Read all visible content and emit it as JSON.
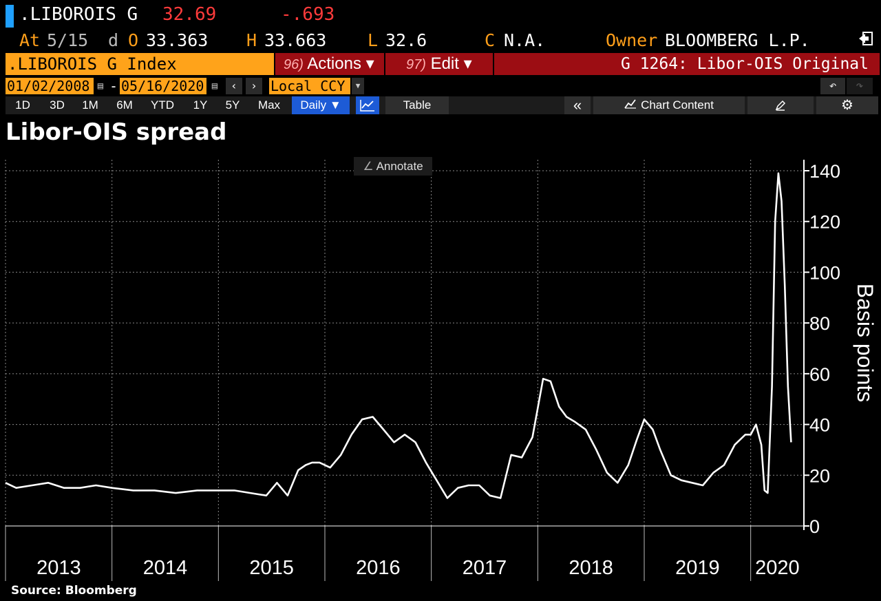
{
  "ticker": {
    "symbol": ".LIBOROIS G",
    "last": "32.69",
    "change": "-.693"
  },
  "quote": {
    "at_label": "At",
    "at_value": "5/15",
    "d_label": "d",
    "open_label": "O",
    "open_value": "33.363",
    "high_label": "H",
    "high_value": "33.663",
    "low_label": "L",
    "low_value": "32.6",
    "close_label": "C",
    "close_value": "N.A.",
    "owner_label": "Owner",
    "owner_value": "BLOOMBERG L.P."
  },
  "command_bar": {
    "security": ".LIBOROIS G Index",
    "actions_num": "96)",
    "actions_label": "Actions ▾",
    "edit_num": "97)",
    "edit_label": "Edit ▾",
    "function_title": "G 1264: Libor-OIS Original"
  },
  "date_range": {
    "start": "01/02/2008",
    "dash": "-",
    "end": "05/16/2020",
    "currency": "Local CCY"
  },
  "period_buttons": [
    "1D",
    "3D",
    "1M",
    "6M",
    "YTD",
    "1Y",
    "5Y",
    "Max"
  ],
  "frequency": "Daily ▼",
  "toolbar": {
    "table_label": "Table",
    "collapse_glyph": "«",
    "chart_content_label": "Chart Content",
    "annotate_label": "Annotate"
  },
  "icons": {
    "exit": "exit-icon",
    "calendar": "calendar-icon",
    "undo": "undo-icon",
    "redo": "redo-icon",
    "line_chart": "line-chart-icon",
    "settings": "gear-icon",
    "pencil": "pencil-icon"
  },
  "colors": {
    "accent_orange": "#ffa31a",
    "command_red": "#9c0d13",
    "selected_blue": "#1d5bd6",
    "price_red": "#ff3b3b",
    "ticker_blue": "#1fa0ff"
  },
  "chart_title": "Libor-OIS spread",
  "source": "Source: Bloomberg",
  "chart_data": {
    "type": "line",
    "title": "Libor-OIS spread",
    "ylabel": "Basis points",
    "xlabel": "",
    "ylim": [
      0,
      140
    ],
    "xlim": [
      2013.0,
      2020.5
    ],
    "yticks": [
      0,
      20,
      40,
      60,
      80,
      100,
      120,
      140
    ],
    "xtick_labels": [
      "2013",
      "2014",
      "2015",
      "2016",
      "2017",
      "2018",
      "2019",
      "2020"
    ],
    "grid": true,
    "legend": "none",
    "series": [
      {
        "x": [
          2013.0,
          2013.1,
          2013.25,
          2013.4,
          2013.55,
          2013.7,
          2013.85,
          2014.0,
          2014.2,
          2014.4,
          2014.6,
          2014.8,
          2015.0,
          2015.15,
          2015.3,
          2015.45,
          2015.55,
          2015.65,
          2015.75,
          2015.82,
          2015.88,
          2015.95,
          2016.05,
          2016.15,
          2016.25,
          2016.35,
          2016.45,
          2016.55,
          2016.65,
          2016.75,
          2016.85,
          2016.95,
          2017.05,
          2017.15,
          2017.25,
          2017.35,
          2017.45,
          2017.55,
          2017.65,
          2017.75,
          2017.85,
          2017.95,
          2018.05,
          2018.12,
          2018.2,
          2018.27,
          2018.35,
          2018.45,
          2018.55,
          2018.65,
          2018.75,
          2018.85,
          2018.93,
          2019.0,
          2019.08,
          2019.15,
          2019.25,
          2019.35,
          2019.45,
          2019.55,
          2019.65,
          2019.75,
          2019.85,
          2019.95,
          2020.0,
          2020.05,
          2020.1,
          2020.13,
          2020.16,
          2020.2,
          2020.23,
          2020.26,
          2020.29,
          2020.32,
          2020.35,
          2020.38
        ],
        "y": [
          17,
          15,
          16,
          17,
          15,
          15,
          16,
          15,
          14,
          14,
          13,
          14,
          14,
          14,
          13,
          12,
          17,
          12,
          22,
          24,
          25,
          25,
          23,
          28,
          36,
          42,
          43,
          38,
          33,
          36,
          33,
          25,
          18,
          11,
          15,
          16,
          16,
          12,
          11,
          28,
          27,
          35,
          58,
          57,
          47,
          43,
          41,
          38,
          30,
          21,
          17,
          24,
          34,
          42,
          38,
          30,
          20,
          18,
          17,
          16,
          21,
          24,
          32,
          36,
          36,
          40,
          32,
          14,
          13,
          55,
          120,
          139,
          128,
          95,
          55,
          33
        ],
        "stroke": "#ffffff"
      }
    ]
  }
}
